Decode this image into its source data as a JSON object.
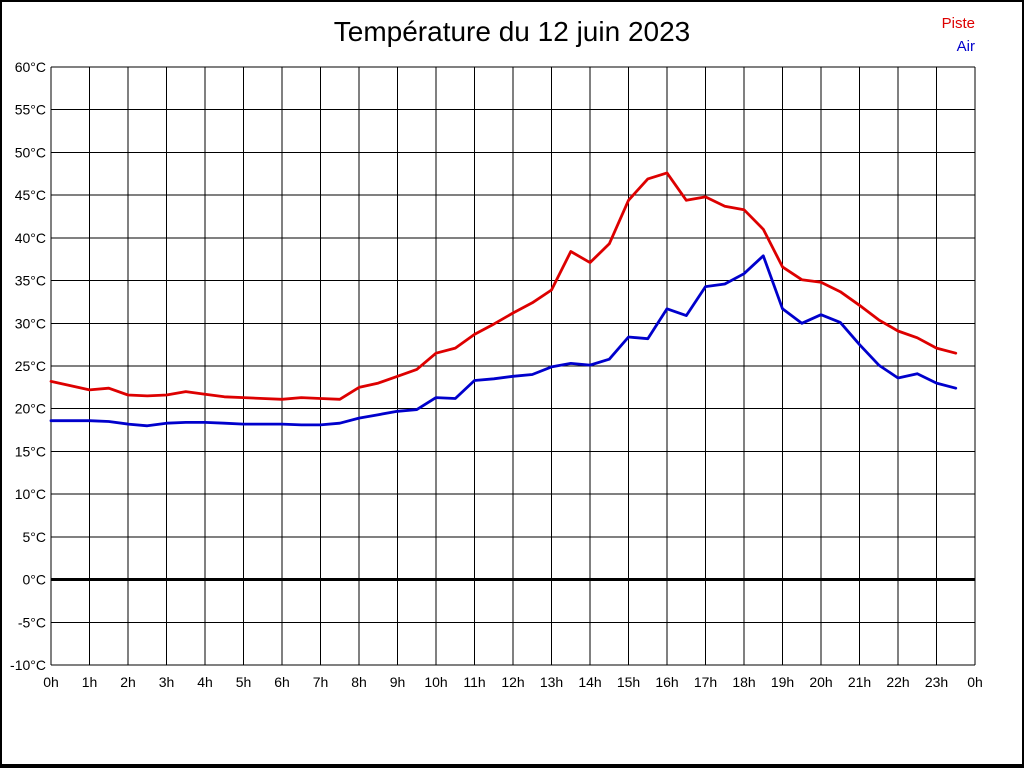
{
  "page": {
    "background": "#ffffff",
    "frame_color": "#000000"
  },
  "header": {
    "title": "Température du 12 juin 2023"
  },
  "legend": {
    "position": "top-right",
    "items": [
      {
        "label": "Piste",
        "color": "#dd0000"
      },
      {
        "label": "Air",
        "color": "#0000cc"
      }
    ]
  },
  "chart_data": {
    "type": "line",
    "title": "Température du 12 juin 2023",
    "xlabel": "",
    "ylabel": "",
    "grid": true,
    "grid_color": "#000000",
    "legend_position": "top-right",
    "xlim": [
      0,
      24
    ],
    "ylim": [
      -10,
      60
    ],
    "ytick_step": 5,
    "zero_line_emphasized": true,
    "xtick_labels": [
      "0h",
      "1h",
      "2h",
      "3h",
      "4h",
      "5h",
      "6h",
      "7h",
      "8h",
      "9h",
      "10h",
      "11h",
      "12h",
      "13h",
      "14h",
      "15h",
      "16h",
      "17h",
      "18h",
      "19h",
      "20h",
      "21h",
      "22h",
      "23h",
      "0h"
    ],
    "ytick_labels": [
      "60°C",
      "55°C",
      "50°C",
      "45°C",
      "40°C",
      "35°C",
      "30°C",
      "25°C",
      "20°C",
      "15°C",
      "10°C",
      "5°C",
      "0°C",
      "-5°C",
      "-10°C"
    ],
    "x": [
      0,
      0.5,
      1,
      1.5,
      2,
      2.5,
      3,
      3.5,
      4,
      4.5,
      5,
      5.5,
      6,
      6.5,
      7,
      7.5,
      8,
      8.5,
      9,
      9.5,
      10,
      10.5,
      11,
      11.5,
      12,
      12.5,
      13,
      13.5,
      14,
      14.5,
      15,
      15.5,
      16,
      16.5,
      17,
      17.5,
      18,
      18.5,
      19,
      19.5,
      20,
      20.5,
      21,
      21.5,
      22,
      22.5,
      23,
      23.5
    ],
    "series": [
      {
        "name": "Piste",
        "color": "#dd0000",
        "values": [
          23.2,
          22.7,
          22.2,
          22.4,
          21.6,
          21.5,
          21.6,
          22.0,
          21.7,
          21.4,
          21.3,
          21.2,
          21.1,
          21.3,
          21.2,
          21.1,
          22.5,
          23.0,
          23.8,
          24.6,
          26.5,
          27.1,
          28.7,
          29.9,
          31.2,
          32.4,
          33.9,
          38.4,
          37.1,
          39.3,
          44.4,
          46.9,
          47.6,
          44.4,
          44.8,
          43.7,
          43.3,
          41.0,
          36.6,
          35.1,
          34.8,
          33.7,
          32.1,
          30.4,
          29.1,
          28.3,
          27.1,
          26.5
        ]
      },
      {
        "name": "Air",
        "color": "#0000cc",
        "values": [
          18.6,
          18.6,
          18.6,
          18.5,
          18.2,
          18.0,
          18.3,
          18.4,
          18.4,
          18.3,
          18.2,
          18.2,
          18.2,
          18.1,
          18.1,
          18.3,
          18.9,
          19.3,
          19.7,
          19.9,
          21.3,
          21.2,
          23.3,
          23.5,
          23.8,
          24.0,
          24.9,
          25.3,
          25.1,
          25.8,
          28.4,
          28.2,
          31.7,
          30.9,
          34.3,
          34.6,
          35.8,
          37.9,
          31.7,
          30.0,
          31.0,
          30.1,
          27.5,
          25.1,
          23.6,
          24.1,
          23.0,
          22.4
        ]
      }
    ]
  }
}
